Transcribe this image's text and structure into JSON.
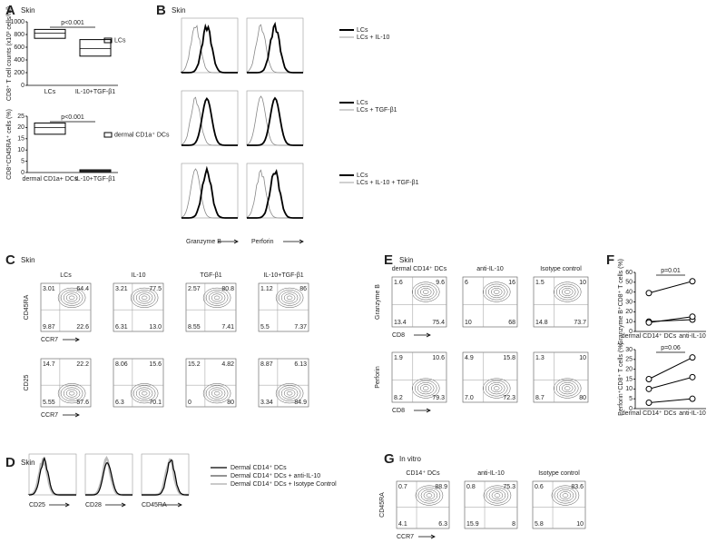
{
  "panel_a": {
    "label": "A",
    "context": "Skin",
    "charts": [
      {
        "type": "box",
        "ylabel": "CD8⁺ T cell counts (x10³ cells/ml)",
        "categories": [
          "LCs",
          "IL-10+TGF-β1"
        ],
        "boxes": [
          [
            740,
            820,
            880
          ],
          [
            460,
            580,
            720
          ]
        ],
        "ylim": [
          0,
          1000
        ],
        "yticks": [
          0,
          200,
          400,
          600,
          800,
          1000
        ],
        "annotation": "p<0.001",
        "legend": "LCs"
      },
      {
        "type": "box",
        "ylabel": "CD8⁺CD45RA⁺ cells (%)",
        "categories": [
          "dermal CD1a+ DCs",
          "IL-10+TGF-β1"
        ],
        "boxes": [
          [
            17,
            20,
            22
          ],
          [
            0.4,
            0.8,
            1.2
          ]
        ],
        "ylim": [
          0,
          25
        ],
        "yticks": [
          0,
          5,
          10,
          15,
          20,
          25
        ],
        "annotation": "p<0.001",
        "legend": "dermal CD1a⁺ DCs"
      }
    ]
  },
  "panel_b": {
    "label": "B",
    "context": "Skin",
    "xlabels": [
      "Granzyme B",
      "Perforin"
    ],
    "rows": [
      {
        "legend": [
          "LCs",
          "LCs + IL-10"
        ]
      },
      {
        "legend": [
          "LCs",
          "LCs + TGF-β1"
        ]
      },
      {
        "legend": [
          "LCs",
          "LCs + IL-10 + TGF-β1"
        ]
      }
    ]
  },
  "panel_c": {
    "label": "C",
    "context": "Skin",
    "columns": [
      "LCs",
      "IL-10",
      "TGF-β1",
      "IL-10+TGF-β1"
    ],
    "rows": [
      {
        "ylabel": "CD45RA",
        "xlabel": "CCR7",
        "quadrants": [
          [
            "3.01",
            "64.4",
            "9.87",
            "22.6"
          ],
          [
            "3.21",
            "77.5",
            "6.31",
            "13.0"
          ],
          [
            "2.57",
            "80.8",
            "8.55",
            "7.41"
          ],
          [
            "1.12",
            "86",
            "5.5",
            "7.37"
          ]
        ]
      },
      {
        "ylabel": "CD25",
        "xlabel": "CCR7",
        "quadrants": [
          [
            "14.7",
            "22.2",
            "5.55",
            "57.6"
          ],
          [
            "8.06",
            "15.6",
            "6.3",
            "70.1"
          ],
          [
            "15.2",
            "4.82",
            "0",
            "80"
          ],
          [
            "8.87",
            "6.13",
            "3.34",
            "84.9"
          ]
        ]
      }
    ]
  },
  "panel_d": {
    "label": "D",
    "context": "Skin",
    "xlabels": [
      "CD25",
      "CD28",
      "CD45RA"
    ],
    "legend": [
      "Dermal CD14⁺ DCs",
      "Dermal CD14⁺ DCs + anti-IL-10",
      "Dermal CD14⁺ DCs + Isotype Control"
    ]
  },
  "panel_e": {
    "label": "E",
    "context": "Skin",
    "columns": [
      "dermal CD14⁺ DCs",
      "anti-IL-10",
      "Isotype control"
    ],
    "rows": [
      {
        "ylabel": "Granzyme B",
        "xlabel": "CD8",
        "quadrants": [
          [
            "1.6",
            "9.6",
            "13.4",
            "75.4"
          ],
          [
            "6",
            "16",
            "10",
            "68"
          ],
          [
            "1.5",
            "10",
            "14.8",
            "73.7"
          ]
        ]
      },
      {
        "ylabel": "Perforin",
        "xlabel": "CD8",
        "quadrants": [
          [
            "1.9",
            "10.6",
            "8.2",
            "79.3"
          ],
          [
            "4.9",
            "15.8",
            "7.0",
            "72.3"
          ],
          [
            "1.3",
            "10",
            "8.7",
            "80"
          ]
        ]
      }
    ]
  },
  "panel_f": {
    "label": "F",
    "charts": [
      {
        "type": "line",
        "ylabel": "Granzyme B⁺CD8⁺ T cells (%)",
        "categories": [
          "dermal CD14⁺ DCs",
          "anti-IL-10"
        ],
        "series": [
          [
            10,
            12
          ],
          [
            9,
            15
          ],
          [
            39,
            51
          ]
        ],
        "ylim": [
          0,
          60
        ],
        "yticks": [
          0,
          10,
          20,
          30,
          40,
          50,
          60
        ],
        "annotation": "p=0.01"
      },
      {
        "type": "line",
        "ylabel": "Perforin⁺CD8⁺ T cells (%)",
        "categories": [
          "dermal CD14⁺ DCs",
          "anti-IL-10"
        ],
        "series": [
          [
            15,
            26
          ],
          [
            10,
            16
          ],
          [
            3,
            5
          ]
        ],
        "ylim": [
          0,
          30
        ],
        "yticks": [
          0,
          5,
          10,
          15,
          20,
          25,
          30
        ],
        "annotation": "p=0.06"
      }
    ]
  },
  "panel_g": {
    "label": "G",
    "context": "In vitro",
    "columns": [
      "CD14⁺ DCs",
      "anti-IL-10",
      "Isotype control"
    ],
    "rows": [
      {
        "ylabel": "CD45RA",
        "xlabel": "CCR7",
        "quadrants": [
          [
            "0.7",
            "88.9",
            "4.1",
            "6.3"
          ],
          [
            "0.8",
            "75.3",
            "15.9",
            "8"
          ],
          [
            "0.6",
            "83.6",
            "5.8",
            "10"
          ]
        ]
      }
    ]
  }
}
